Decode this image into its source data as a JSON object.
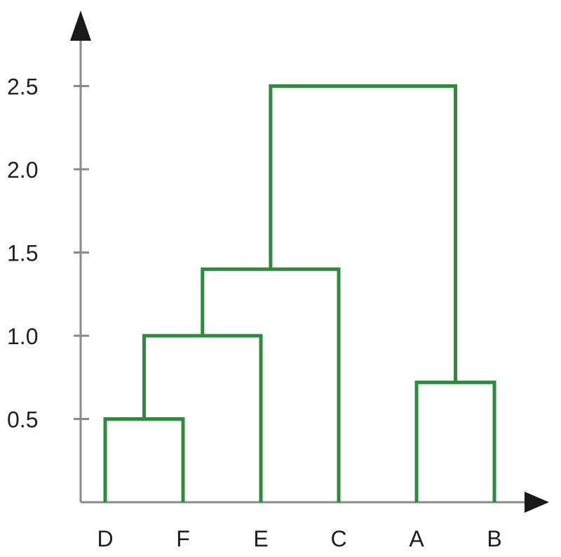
{
  "chart_data": {
    "type": "dendrogram",
    "title": "",
    "xlabel": "",
    "ylabel": "",
    "ylim": [
      0,
      2.5
    ],
    "yticks": [
      {
        "value": 0.5,
        "label": "0.5"
      },
      {
        "value": 1.0,
        "label": "1.0"
      },
      {
        "value": 1.5,
        "label": "1.5"
      },
      {
        "value": 2.0,
        "label": "2.0"
      },
      {
        "value": 2.5,
        "label": "2.5"
      }
    ],
    "leaves": [
      "D",
      "F",
      "E",
      "C",
      "A",
      "B"
    ],
    "merges": [
      {
        "left": "D",
        "right": "F",
        "height": 0.5
      },
      {
        "left": "DF",
        "right": "E",
        "height": 1.0
      },
      {
        "left": "DFE",
        "right": "C",
        "height": 1.4
      },
      {
        "left": "A",
        "right": "B",
        "height": 0.72
      },
      {
        "left": "DFEC",
        "right": "AB",
        "height": 2.5
      }
    ],
    "link_color": "#2e8b3e",
    "axis_color": "#8a8a8a",
    "grid": false
  }
}
